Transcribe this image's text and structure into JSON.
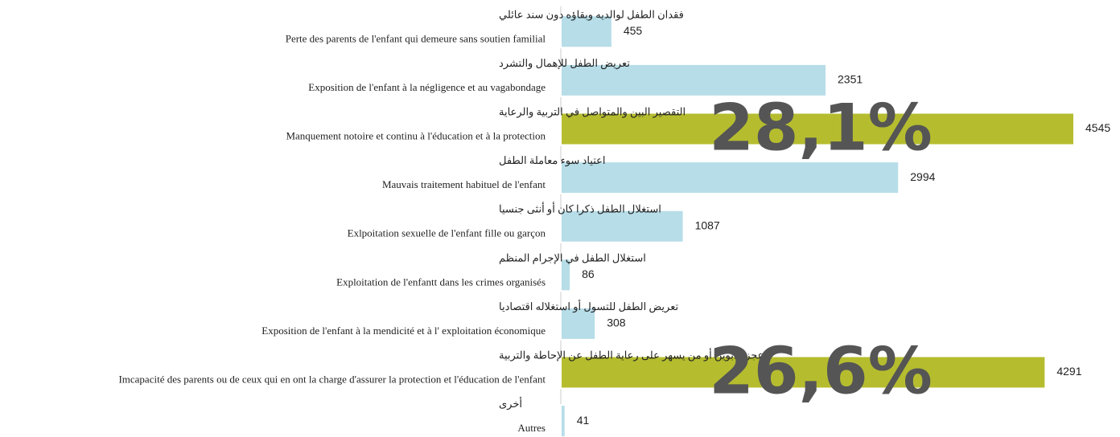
{
  "chart_data": {
    "type": "bar",
    "orientation": "horizontal",
    "categories": [
      {
        "ar": "فقدان الطفل لوالديه وبقاؤه دون سند عائلي",
        "fr": "Perte des parents de l'enfant qui demeure sans soutien familial"
      },
      {
        "ar": "تعريض الطفل للإهمال والتشرد",
        "fr": "Exposition de l'enfant à la négligence et au vagabondage"
      },
      {
        "ar": "التقصير البين والمتواصل في التربية والرعاية",
        "fr": "Manquement notoire et continu à l'éducation et à la protection"
      },
      {
        "ar": "اعتياد سوء معاملة الطفل",
        "fr": "Mauvais traitement habituel de l'enfant"
      },
      {
        "ar": "استغلال الطفل ذكرا كان أو أنثى جنسيا",
        "fr": "Exlpoitation sexuelle de l'enfant fille ou garçon"
      },
      {
        "ar": "استغلال الطفل في الإجرام المنظم",
        "fr": "Exploitation de l'enfantt dans les crimes organisés"
      },
      {
        "ar": "تعريض الطفل للتسول أو استغلاله اقتصاديا",
        "fr": "Exposition de l'enfant à la mendicité et à l' exploitation économique"
      },
      {
        "ar": "عجز الأبوين أو من يسهر على رعاية الطفل عن الإحاطة والتربية",
        "fr": "Imcapacité des parents ou de ceux qui en ont la charge d'assurer la protection et l'éducation de l'enfant"
      },
      {
        "ar": "أخرى",
        "fr": "Autres"
      }
    ],
    "values": [
      455,
      2351,
      4545,
      2994,
      1087,
      86,
      308,
      4291,
      41
    ],
    "colors": [
      "#b7dde8",
      "#b7dde8",
      "#b5bd2f",
      "#b7dde8",
      "#b7dde8",
      "#b7dde8",
      "#b7dde8",
      "#b5bd2f",
      "#b7dde8"
    ],
    "annotations": [
      null,
      null,
      "28,1%",
      null,
      null,
      null,
      null,
      "26,6%",
      null
    ]
  }
}
